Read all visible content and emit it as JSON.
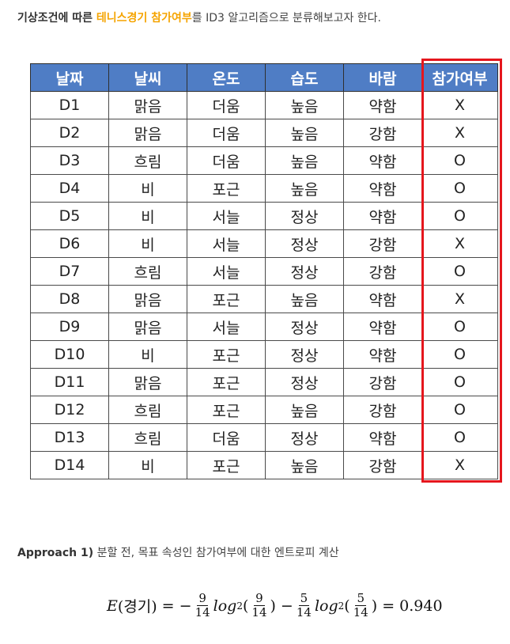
{
  "intro": {
    "part1": "기상조건에 따른 ",
    "highlight1": "테니스경기",
    "space": " ",
    "highlight2": "참가여부",
    "part2": "를 ID3 알고리즘으로 분류해보고자 한다."
  },
  "table": {
    "headers": [
      "날짜",
      "날씨",
      "온도",
      "습도",
      "바람",
      "참가여부"
    ],
    "rows": [
      [
        "D1",
        "맑음",
        "더움",
        "높음",
        "약함",
        "X"
      ],
      [
        "D2",
        "맑음",
        "더움",
        "높음",
        "강함",
        "X"
      ],
      [
        "D3",
        "흐림",
        "더움",
        "높음",
        "약함",
        "O"
      ],
      [
        "D4",
        "비",
        "포근",
        "높음",
        "약함",
        "O"
      ],
      [
        "D5",
        "비",
        "서늘",
        "정상",
        "약함",
        "O"
      ],
      [
        "D6",
        "비",
        "서늘",
        "정상",
        "강함",
        "X"
      ],
      [
        "D7",
        "흐림",
        "서늘",
        "정상",
        "강함",
        "O"
      ],
      [
        "D8",
        "맑음",
        "포근",
        "높음",
        "약함",
        "X"
      ],
      [
        "D9",
        "맑음",
        "서늘",
        "정상",
        "약함",
        "O"
      ],
      [
        "D10",
        "비",
        "포근",
        "정상",
        "약함",
        "O"
      ],
      [
        "D11",
        "맑음",
        "포근",
        "정상",
        "강함",
        "O"
      ],
      [
        "D12",
        "흐림",
        "포근",
        "높음",
        "강함",
        "O"
      ],
      [
        "D13",
        "흐림",
        "더움",
        "정상",
        "약함",
        "O"
      ],
      [
        "D14",
        "비",
        "포근",
        "높음",
        "강함",
        "X"
      ]
    ],
    "highlight_color": "#e5161d",
    "header_color": "#4f7dc5"
  },
  "approach": {
    "label": "Approach 1)",
    "text": " 분할 전, 목표 속성인 참가여부에 대한 엔트로피 계산"
  },
  "formula": {
    "lhs_e": "E",
    "lhs_arg": "(경기)",
    "eq": " = −",
    "n1": "9",
    "d1": "14",
    "log_text1": "log",
    "base1": "2",
    "open1": "(",
    "n2": "9",
    "d2": "14",
    "close1": ")",
    "minus": " − ",
    "n3": "5",
    "d3": "14",
    "log_text2": "log",
    "base2": "2",
    "open2": "(",
    "n4": "5",
    "d4": "14",
    "close2": ")",
    "result": " = 0.940"
  }
}
